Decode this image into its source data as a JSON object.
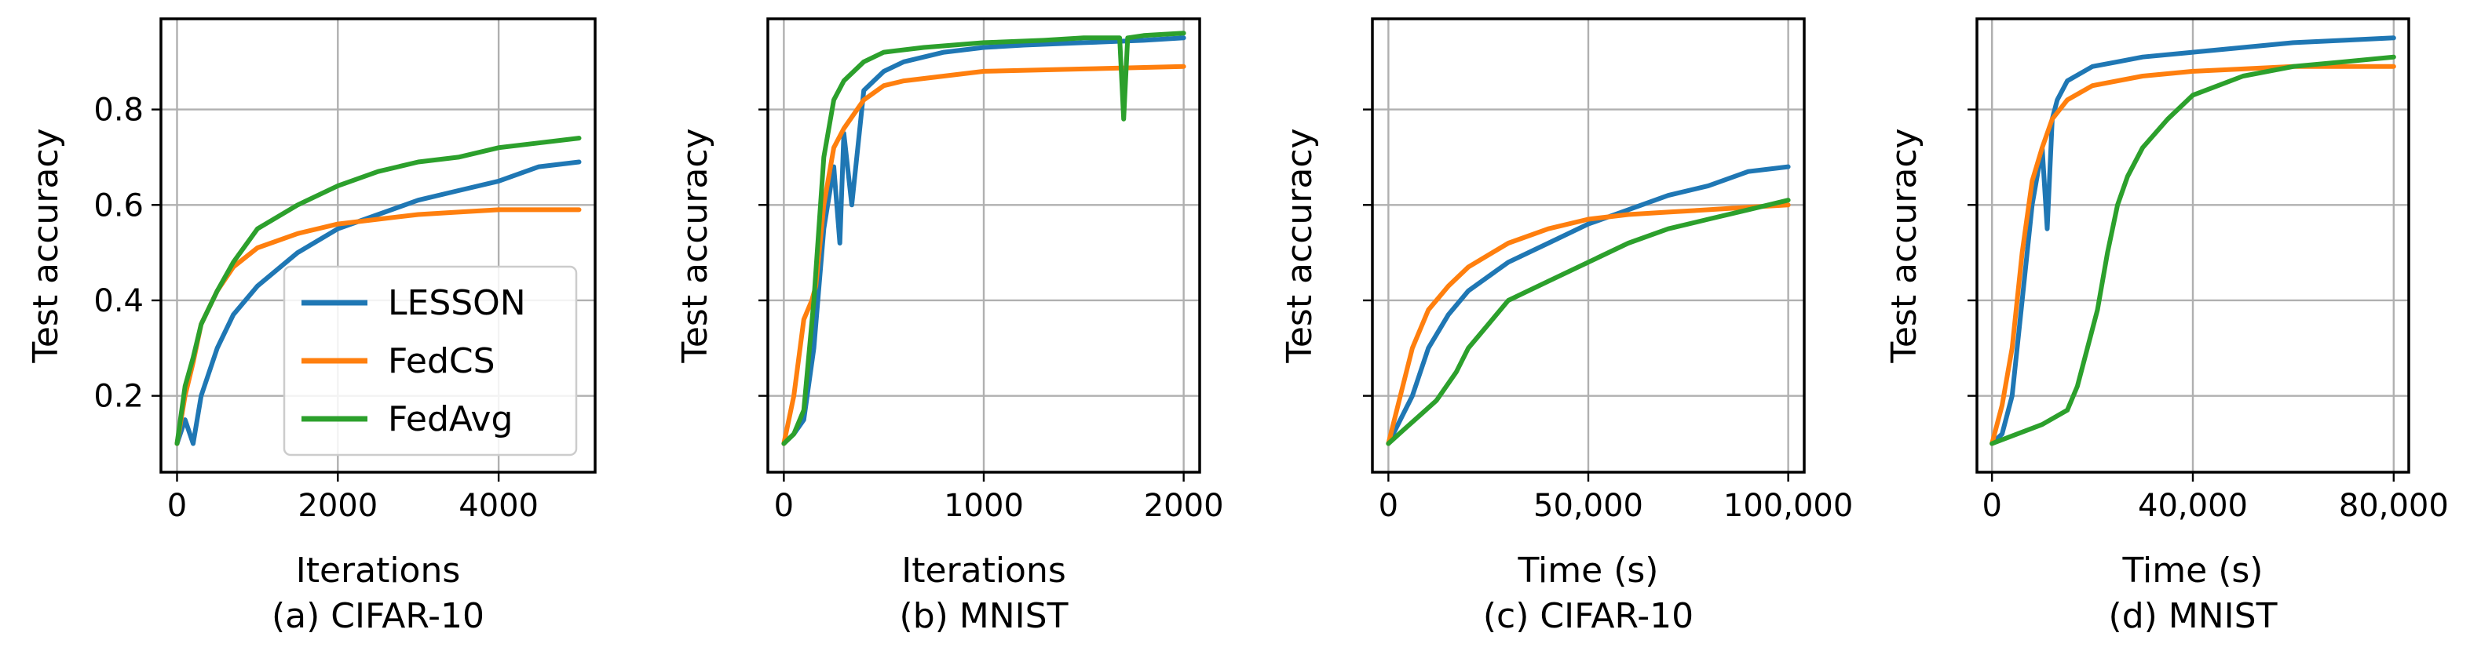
{
  "colors": {
    "LESSON": "#1f77b4",
    "FedCS": "#ff7f0e",
    "FedAvg": "#2ca02c"
  },
  "legend": {
    "location": "lower-right of panel (a)",
    "entries": [
      "LESSON",
      "FedCS",
      "FedAvg"
    ]
  },
  "chart_data": [
    {
      "type": "line",
      "caption": "(a) CIFAR-10",
      "xlabel": "Iterations",
      "ylabel": "Test accuracy",
      "xlim": [
        -200,
        5200
      ],
      "ylim": [
        0.04,
        0.99
      ],
      "xticks": [
        0,
        2000,
        4000
      ],
      "xtick_labels": [
        "0",
        "2000",
        "4000"
      ],
      "yticks": [
        0.2,
        0.4,
        0.6,
        0.8
      ],
      "ytick_labels": [
        "0.2",
        "0.4",
        "0.6",
        "0.8"
      ],
      "grid": true,
      "series": [
        {
          "name": "LESSON",
          "x": [
            0,
            100,
            200,
            300,
            500,
            700,
            1000,
            1500,
            2000,
            2500,
            3000,
            3500,
            4000,
            4500,
            5000
          ],
          "y": [
            0.1,
            0.15,
            0.1,
            0.2,
            0.3,
            0.37,
            0.43,
            0.5,
            0.55,
            0.58,
            0.61,
            0.63,
            0.65,
            0.68,
            0.69
          ]
        },
        {
          "name": "FedCS",
          "x": [
            0,
            100,
            200,
            300,
            500,
            700,
            1000,
            1500,
            2000,
            2500,
            3000,
            3500,
            4000,
            4500,
            5000
          ],
          "y": [
            0.1,
            0.2,
            0.27,
            0.35,
            0.42,
            0.47,
            0.51,
            0.54,
            0.56,
            0.57,
            0.58,
            0.585,
            0.59,
            0.59,
            0.59
          ]
        },
        {
          "name": "FedAvg",
          "x": [
            0,
            100,
            200,
            300,
            500,
            700,
            1000,
            1500,
            2000,
            2500,
            3000,
            3500,
            4000,
            4500,
            5000
          ],
          "y": [
            0.1,
            0.22,
            0.28,
            0.35,
            0.42,
            0.48,
            0.55,
            0.6,
            0.64,
            0.67,
            0.69,
            0.7,
            0.72,
            0.73,
            0.74
          ]
        }
      ]
    },
    {
      "type": "line",
      "caption": "(b) MNIST",
      "xlabel": "Iterations",
      "ylabel": "Test accuracy",
      "xlim": [
        -80,
        2080
      ],
      "ylim": [
        0.04,
        0.99
      ],
      "xticks": [
        0,
        1000,
        2000
      ],
      "xtick_labels": [
        "0",
        "1000",
        "2000"
      ],
      "yticks": [
        0.2,
        0.4,
        0.6,
        0.8
      ],
      "ytick_labels": [
        "",
        "",
        "",
        ""
      ],
      "grid": true,
      "series": [
        {
          "name": "LESSON",
          "x": [
            0,
            50,
            100,
            150,
            200,
            250,
            280,
            300,
            340,
            400,
            500,
            600,
            800,
            1000,
            1200,
            1500,
            1800,
            2000
          ],
          "y": [
            0.1,
            0.12,
            0.15,
            0.3,
            0.55,
            0.68,
            0.52,
            0.75,
            0.6,
            0.84,
            0.88,
            0.9,
            0.92,
            0.93,
            0.935,
            0.94,
            0.945,
            0.95
          ]
        },
        {
          "name": "FedCS",
          "x": [
            0,
            50,
            100,
            140,
            160,
            200,
            250,
            300,
            400,
            500,
            600,
            800,
            1000,
            1500,
            2000
          ],
          "y": [
            0.1,
            0.2,
            0.36,
            0.4,
            0.43,
            0.6,
            0.72,
            0.76,
            0.82,
            0.85,
            0.86,
            0.87,
            0.88,
            0.885,
            0.89
          ]
        },
        {
          "name": "FedAvg",
          "x": [
            0,
            50,
            100,
            150,
            200,
            250,
            300,
            400,
            500,
            700,
            1000,
            1300,
            1500,
            1680,
            1700,
            1720,
            1800,
            2000
          ],
          "y": [
            0.1,
            0.12,
            0.17,
            0.4,
            0.7,
            0.82,
            0.86,
            0.9,
            0.92,
            0.93,
            0.94,
            0.945,
            0.95,
            0.95,
            0.78,
            0.95,
            0.955,
            0.96
          ]
        }
      ]
    },
    {
      "type": "line",
      "caption": "(c) CIFAR-10",
      "xlabel": "Time (s)",
      "ylabel": "Test accuracy",
      "xlim": [
        -4000,
        104000
      ],
      "ylim": [
        0.04,
        0.99
      ],
      "xticks": [
        0,
        50000,
        100000
      ],
      "xtick_labels": [
        "0",
        "50,000",
        "100,000"
      ],
      "yticks": [
        0.2,
        0.4,
        0.6,
        0.8
      ],
      "ytick_labels": [
        "",
        "",
        "",
        ""
      ],
      "grid": true,
      "series": [
        {
          "name": "LESSON",
          "x": [
            0,
            3000,
            6000,
            10000,
            15000,
            20000,
            30000,
            40000,
            50000,
            60000,
            70000,
            80000,
            90000,
            100000
          ],
          "y": [
            0.1,
            0.15,
            0.2,
            0.3,
            0.37,
            0.42,
            0.48,
            0.52,
            0.56,
            0.59,
            0.62,
            0.64,
            0.67,
            0.68
          ]
        },
        {
          "name": "FedCS",
          "x": [
            0,
            3000,
            6000,
            10000,
            15000,
            20000,
            30000,
            40000,
            50000,
            60000,
            70000,
            80000,
            90000,
            100000
          ],
          "y": [
            0.1,
            0.2,
            0.3,
            0.38,
            0.43,
            0.47,
            0.52,
            0.55,
            0.57,
            0.58,
            0.585,
            0.59,
            0.595,
            0.6
          ]
        },
        {
          "name": "FedAvg",
          "x": [
            0,
            4000,
            8000,
            12000,
            17000,
            20000,
            25000,
            30000,
            40000,
            50000,
            60000,
            70000,
            80000,
            90000,
            100000
          ],
          "y": [
            0.1,
            0.13,
            0.16,
            0.19,
            0.25,
            0.3,
            0.35,
            0.4,
            0.44,
            0.48,
            0.52,
            0.55,
            0.57,
            0.59,
            0.61
          ]
        }
      ]
    },
    {
      "type": "line",
      "caption": "(d) MNIST",
      "xlabel": "Time (s)",
      "ylabel": "Test accuracy",
      "xlim": [
        -3000,
        83000
      ],
      "ylim": [
        0.04,
        0.99
      ],
      "xticks": [
        0,
        40000,
        80000
      ],
      "xtick_labels": [
        "0",
        "40,000",
        "80,000"
      ],
      "yticks": [
        0.2,
        0.4,
        0.6,
        0.8
      ],
      "ytick_labels": [
        "",
        "",
        "",
        ""
      ],
      "grid": true,
      "series": [
        {
          "name": "LESSON",
          "x": [
            0,
            2000,
            4000,
            6000,
            8000,
            10000,
            11000,
            12000,
            13000,
            15000,
            20000,
            25000,
            30000,
            40000,
            50000,
            60000,
            70000,
            80000
          ],
          "y": [
            0.1,
            0.12,
            0.2,
            0.4,
            0.6,
            0.72,
            0.55,
            0.78,
            0.82,
            0.86,
            0.89,
            0.9,
            0.91,
            0.92,
            0.93,
            0.94,
            0.945,
            0.95
          ]
        },
        {
          "name": "FedCS",
          "x": [
            0,
            2000,
            4000,
            6000,
            8000,
            10000,
            12000,
            15000,
            20000,
            30000,
            40000,
            50000,
            60000,
            70000,
            80000
          ],
          "y": [
            0.1,
            0.18,
            0.3,
            0.5,
            0.65,
            0.72,
            0.78,
            0.82,
            0.85,
            0.87,
            0.88,
            0.885,
            0.89,
            0.89,
            0.89
          ]
        },
        {
          "name": "FedAvg",
          "x": [
            0,
            5000,
            10000,
            15000,
            17000,
            19000,
            21000,
            23000,
            25000,
            27000,
            30000,
            35000,
            40000,
            45000,
            50000,
            60000,
            70000,
            80000
          ],
          "y": [
            0.1,
            0.12,
            0.14,
            0.17,
            0.22,
            0.3,
            0.38,
            0.5,
            0.6,
            0.66,
            0.72,
            0.78,
            0.83,
            0.85,
            0.87,
            0.89,
            0.9,
            0.91
          ]
        }
      ]
    }
  ]
}
